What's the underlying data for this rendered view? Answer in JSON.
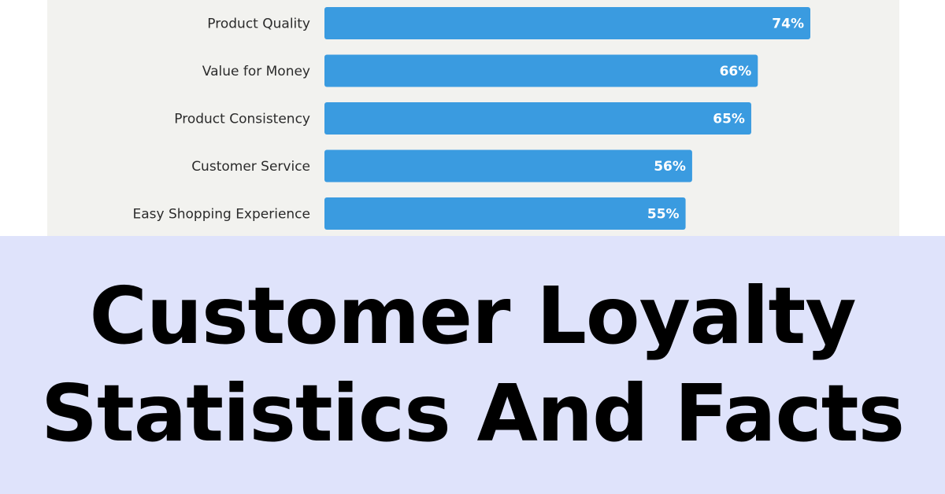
{
  "chart_data": {
    "type": "bar",
    "orientation": "horizontal",
    "categories": [
      "Product Quality",
      "Value for Money",
      "Product Consistency",
      "Customer Service",
      "Easy Shopping Experience"
    ],
    "values": [
      74,
      66,
      65,
      56,
      55
    ],
    "value_labels": [
      "74%",
      "66%",
      "65%",
      "56%",
      "55%"
    ],
    "unit": "%",
    "xlim": [
      0,
      100
    ],
    "grid": false,
    "bar_color": "#3a9be0",
    "label_color": "#ffffff"
  },
  "banner": {
    "line1": "Customer Loyalty",
    "line2": "Statistics And Facts",
    "background": "#dfe3fb",
    "text_color": "#000000"
  }
}
